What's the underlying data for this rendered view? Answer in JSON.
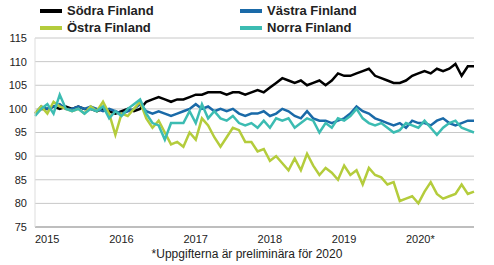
{
  "chart_data": {
    "type": "line",
    "categories": [
      "2015",
      null,
      null,
      null,
      null,
      null,
      null,
      null,
      null,
      null,
      null,
      null,
      "2016",
      null,
      null,
      null,
      null,
      null,
      null,
      null,
      null,
      null,
      null,
      null,
      "2017",
      null,
      null,
      null,
      null,
      null,
      null,
      null,
      null,
      null,
      null,
      null,
      "2018",
      null,
      null,
      null,
      null,
      null,
      null,
      null,
      null,
      null,
      null,
      null,
      "2019",
      null,
      null,
      null,
      null,
      null,
      null,
      null,
      null,
      null,
      null,
      null,
      "2020*",
      null,
      null,
      null,
      null,
      null,
      null,
      null,
      null,
      null,
      null,
      null
    ],
    "series": [
      {
        "name": "Södra Finland",
        "color": "#000000",
        "values": [
          99,
          100,
          100,
          100.5,
          100,
          100.5,
          100,
          100.5,
          100,
          100,
          99.5,
          100,
          99.5,
          99,
          99.5,
          100,
          99.5,
          100,
          101.5,
          102,
          102.5,
          102,
          101.5,
          102,
          102,
          102.5,
          103,
          103,
          103.5,
          103.5,
          103.5,
          103,
          103.5,
          103.5,
          103,
          103.5,
          104,
          103.5,
          104.5,
          105.5,
          106.5,
          106,
          105.5,
          106,
          105,
          105.5,
          106,
          105,
          106,
          107.5,
          107,
          107,
          107.5,
          108,
          108.5,
          107,
          106.5,
          106,
          105.5,
          105.5,
          106,
          107,
          107.5,
          108,
          107.5,
          108.5,
          108,
          108.5,
          109.5,
          107,
          109,
          109
        ]
      },
      {
        "name": "Västra Finland",
        "color": "#1a6aa8",
        "values": [
          99,
          100.5,
          100,
          100.5,
          101,
          100,
          100,
          100.5,
          100,
          100.5,
          100,
          99.5,
          100,
          99.5,
          99,
          99.5,
          100,
          101,
          99.5,
          99,
          99.5,
          99,
          98.5,
          99,
          99.5,
          100,
          101,
          100,
          100.5,
          99.5,
          100,
          99.5,
          100,
          99,
          98.5,
          99,
          99,
          99.5,
          98.5,
          99,
          100,
          99.5,
          98.5,
          98,
          99.5,
          98,
          97.5,
          97.5,
          97,
          97.5,
          98,
          99,
          100.5,
          99.5,
          99,
          98,
          97.5,
          97,
          96.5,
          97,
          96,
          97.5,
          97,
          97,
          96.5,
          97.5,
          98,
          97,
          96.5,
          97,
          97.5,
          97.5
        ]
      },
      {
        "name": "Östra Finland",
        "color": "#b4cc3c",
        "values": [
          99,
          100.5,
          99,
          101.5,
          100.5,
          100,
          99.5,
          100,
          99,
          100.5,
          99.5,
          101.5,
          99,
          94.5,
          99,
          98.5,
          100,
          101.5,
          98,
          96,
          97.5,
          95,
          92.5,
          93,
          92,
          95,
          93.5,
          98,
          96.5,
          94,
          92,
          94,
          96,
          95.5,
          93,
          93,
          91,
          91.5,
          89,
          90,
          88.5,
          87,
          89.5,
          87,
          90.5,
          88,
          86,
          87.5,
          86.5,
          85,
          88,
          86,
          87,
          84,
          87.5,
          86,
          85.5,
          84,
          84.5,
          80.5,
          81,
          81.5,
          80,
          82.5,
          84.5,
          82,
          81,
          81.5,
          82,
          84,
          82,
          82.5
        ]
      },
      {
        "name": "Norra Finland",
        "color": "#3cbcb2",
        "values": [
          98.5,
          100,
          101,
          99,
          103,
          100,
          99.5,
          100,
          99,
          100,
          99.5,
          100.5,
          98,
          99.5,
          98.5,
          100,
          101,
          102,
          99,
          97,
          96.5,
          93.5,
          97,
          97,
          97,
          99.5,
          97,
          101,
          98,
          99.5,
          98,
          97.5,
          98.5,
          97,
          96.5,
          97,
          96,
          97.5,
          96,
          98,
          97.5,
          98,
          96,
          97,
          98,
          97.5,
          95,
          97,
          96,
          98,
          97.5,
          98.5,
          100,
          98,
          97,
          96.5,
          97,
          96,
          95,
          95.5,
          97,
          96.5,
          96,
          97.5,
          96,
          94.5,
          96,
          97,
          97.5,
          96,
          95.5,
          95
        ]
      }
    ],
    "ylim": [
      75,
      115
    ],
    "yticks": [
      75,
      80,
      85,
      90,
      95,
      100,
      105,
      110,
      115
    ],
    "grid": true,
    "legend": "top",
    "annotations": [
      "*Uppgifterna är preliminära för 2020"
    ]
  }
}
